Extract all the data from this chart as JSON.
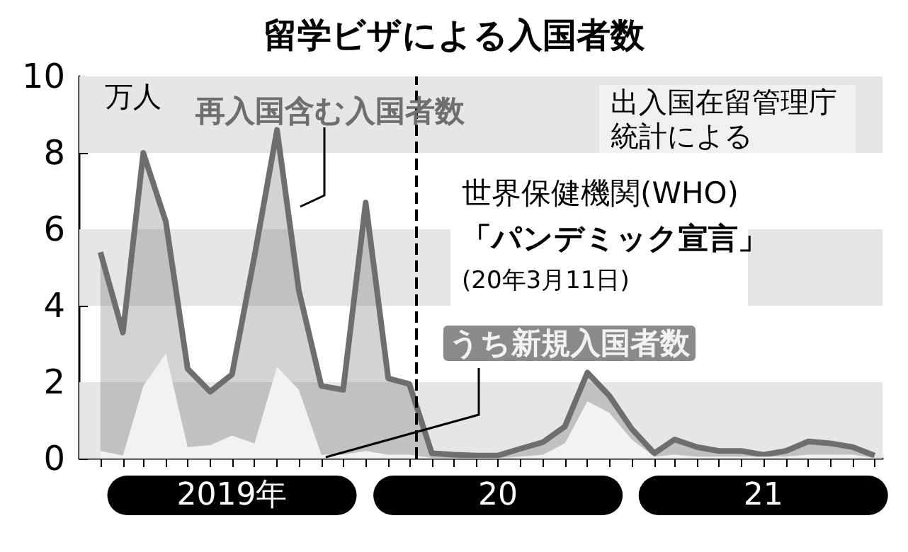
{
  "chart_data": {
    "type": "area",
    "title": "留学ビザによる入国者数",
    "ylabel": "万人",
    "x": [
      "2019-01",
      "2019-02",
      "2019-03",
      "2019-04",
      "2019-05",
      "2019-06",
      "2019-07",
      "2019-08",
      "2019-09",
      "2019-10",
      "2019-11",
      "2019-12",
      "2020-01",
      "2020-02",
      "2020-03",
      "2020-04",
      "2020-05",
      "2020-06",
      "2020-07",
      "2020-08",
      "2020-09",
      "2020-10",
      "2020-11",
      "2020-12",
      "2021-01",
      "2021-02",
      "2021-03",
      "2021-04",
      "2021-05",
      "2021-06",
      "2021-07",
      "2021-08",
      "2021-09",
      "2021-10",
      "2021-11",
      "2021-12"
    ],
    "series": [
      {
        "name": "再入国含む入国者数",
        "color": "#6e6e6e",
        "values": [
          5.4,
          3.3,
          8.0,
          6.2,
          2.35,
          1.75,
          2.2,
          5.3,
          8.6,
          4.4,
          1.9,
          1.8,
          6.7,
          2.1,
          1.95,
          0.14,
          0.1,
          0.08,
          0.08,
          0.26,
          0.43,
          0.84,
          2.25,
          1.65,
          0.78,
          0.14,
          0.5,
          0.3,
          0.2,
          0.2,
          0.1,
          0.2,
          0.45,
          0.4,
          0.3,
          0.08
        ]
      },
      {
        "name": "うち新規入国者数",
        "color": "#f2f2f2",
        "values": [
          0.2,
          0.08,
          1.9,
          2.75,
          0.3,
          0.35,
          0.6,
          0.4,
          2.4,
          1.8,
          0.1,
          0.1,
          0.2,
          0.1,
          0.1,
          0.02,
          0.02,
          0.02,
          0.02,
          0.05,
          0.1,
          0.4,
          1.5,
          1.2,
          0.5,
          0.05,
          0.1,
          0.05,
          0.05,
          0.05,
          0.05,
          0.05,
          0.1,
          0.1,
          0.1,
          0.02
        ]
      }
    ],
    "xlim": [
      "2018-12-03",
      "2021-12-12"
    ],
    "xticks": [
      {
        "value": "2019-01",
        "label": null
      },
      {
        "value": "2019-02",
        "label": null
      },
      {
        "value": "2019-03",
        "label": null
      },
      {
        "value": "2019-04",
        "label": null
      },
      {
        "value": "2019-05",
        "label": null
      },
      {
        "value": "2019-06",
        "label": null
      },
      {
        "value": "2019-07",
        "label": "2019年"
      },
      {
        "value": "2019-08",
        "label": null
      },
      {
        "value": "2019-09",
        "label": null
      },
      {
        "value": "2019-10",
        "label": null
      },
      {
        "value": "2019-11",
        "label": null
      },
      {
        "value": "2019-12",
        "label": null
      },
      {
        "value": "2020-01",
        "label": null
      },
      {
        "value": "2020-02",
        "label": null
      },
      {
        "value": "2020-03",
        "label": null
      },
      {
        "value": "2020-04",
        "label": null
      },
      {
        "value": "2020-05",
        "label": null
      },
      {
        "value": "2020-06",
        "label": null
      },
      {
        "value": "2020-07",
        "label": "20"
      },
      {
        "value": "2020-08",
        "label": null
      },
      {
        "value": "2020-09",
        "label": null
      },
      {
        "value": "2020-10",
        "label": null
      },
      {
        "value": "2020-11",
        "label": null
      },
      {
        "value": "2020-12",
        "label": null
      },
      {
        "value": "2021-01",
        "label": null
      },
      {
        "value": "2021-02",
        "label": null
      },
      {
        "value": "2021-03",
        "label": null
      },
      {
        "value": "2021-04",
        "label": null
      },
      {
        "value": "2021-05",
        "label": null
      },
      {
        "value": "2021-06",
        "label": null
      },
      {
        "value": "2021-07",
        "label": "21"
      },
      {
        "value": "2021-08",
        "label": null
      },
      {
        "value": "2021-09",
        "label": null
      },
      {
        "value": "2021-10",
        "label": null
      },
      {
        "value": "2021-11",
        "label": null
      },
      {
        "value": "2021-12",
        "label": null
      }
    ],
    "ylim": [
      0,
      10
    ],
    "yticks": [
      0,
      2,
      4,
      6,
      8,
      10
    ],
    "bands": [
      {
        "axis": "y",
        "from": 0,
        "to": 2,
        "color": "#e6e6e6"
      },
      {
        "axis": "y",
        "from": 4,
        "to": 6,
        "color": "#e6e6e6"
      },
      {
        "axis": "y",
        "from": 8,
        "to": 10,
        "color": "#e6e6e6"
      }
    ],
    "ref_lines": [
      {
        "axis": "x",
        "value": "2020-03-11",
        "label": "世界保健機関(WHO)\n「パンデミック宣言」\n(20年3月11日)",
        "line_style": "dashed"
      }
    ],
    "annotations": [
      "出入国在留管理庁統計による"
    ]
  }
}
